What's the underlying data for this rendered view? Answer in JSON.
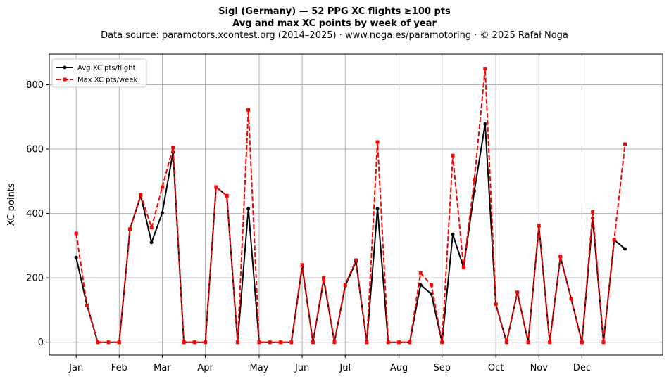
{
  "chart_data": {
    "type": "line",
    "title": "Sigl (Germany)  —  52 PPG XC flights ≥100 pts",
    "subtitle": "Avg and max XC points by week of year",
    "source": "Data source: paramotors.xcontest.org (2014–2025)  ·  www.noga.es/paramotoring  ·  © 2025 Rafał Noga",
    "ylabel": "XC points",
    "xlabel": "",
    "x_tick_labels": [
      "Jan",
      "Feb",
      "Mar",
      "Apr",
      "May",
      "Jun",
      "Jul",
      "Aug",
      "Sep",
      "Oct",
      "Nov",
      "Dec"
    ],
    "x_tick_weeks": [
      1,
      5,
      9,
      13,
      18,
      22,
      26,
      31,
      35,
      40,
      44,
      48
    ],
    "xlim": [
      -1.5,
      55.5
    ],
    "ylim": [
      -40,
      895
    ],
    "y_ticks": [
      0,
      200,
      400,
      600,
      800
    ],
    "grid": true,
    "legend_position": "top-left",
    "weeks": [
      1,
      2,
      3,
      4,
      5,
      6,
      7,
      8,
      9,
      10,
      11,
      12,
      13,
      14,
      15,
      16,
      17,
      18,
      19,
      20,
      21,
      22,
      23,
      24,
      25,
      26,
      27,
      28,
      29,
      30,
      31,
      32,
      33,
      34,
      35,
      36,
      37,
      38,
      39,
      40,
      41,
      42,
      43,
      44,
      45,
      46,
      47,
      48,
      49,
      50,
      51,
      52
    ],
    "series": [
      {
        "name": "Avg XC pts/flight",
        "color": "#000000",
        "style": "solid-circle",
        "values": [
          263,
          115,
          0,
          0,
          0,
          352,
          455,
          310,
          402,
          590,
          0,
          0,
          0,
          482,
          455,
          0,
          415,
          0,
          0,
          0,
          0,
          235,
          0,
          195,
          0,
          175,
          250,
          0,
          415,
          0,
          0,
          0,
          178,
          150,
          0,
          335,
          232,
          470,
          678,
          118,
          0,
          155,
          0,
          360,
          0,
          265,
          135,
          0,
          385,
          0,
          318,
          290
        ]
      },
      {
        "name": "Max XC pts/week",
        "color": "#ff0000",
        "style": "dashed-square",
        "values": [
          338,
          115,
          0,
          0,
          0,
          352,
          458,
          356,
          482,
          605,
          0,
          0,
          0,
          482,
          455,
          0,
          722,
          0,
          0,
          0,
          0,
          240,
          0,
          200,
          0,
          178,
          255,
          0,
          622,
          0,
          0,
          0,
          215,
          178,
          0,
          580,
          232,
          505,
          850,
          118,
          0,
          155,
          0,
          362,
          0,
          267,
          135,
          0,
          405,
          0,
          318,
          615
        ]
      }
    ]
  }
}
